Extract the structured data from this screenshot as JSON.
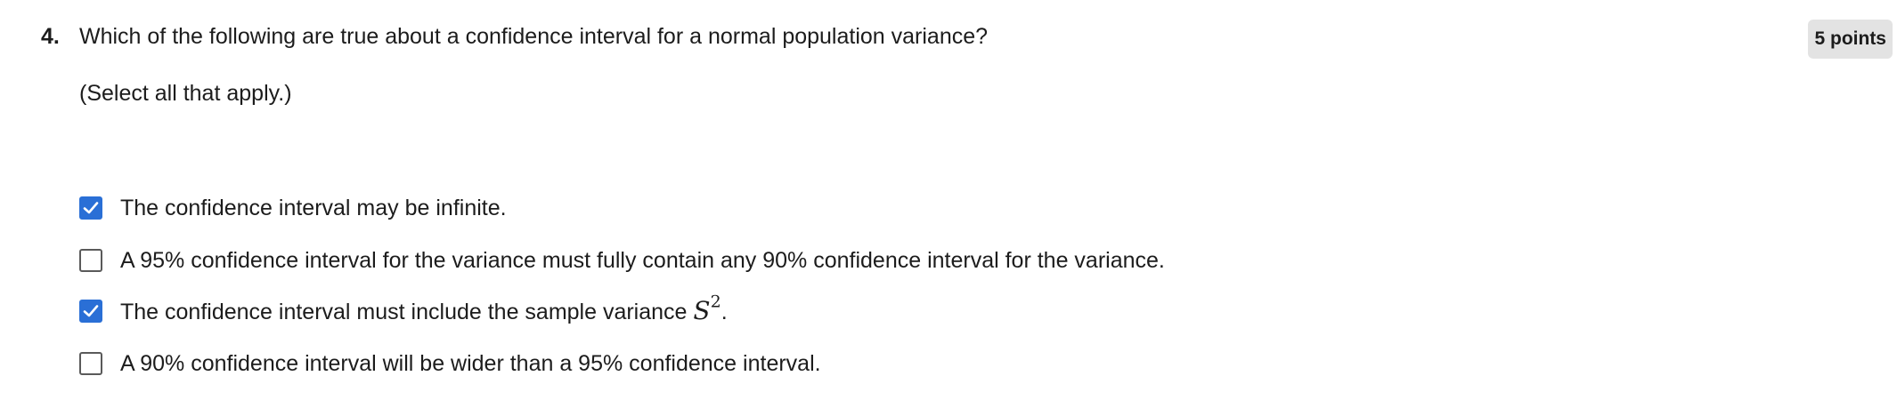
{
  "question": {
    "number": "4.",
    "text": "Which of the following are true about a confidence interval for a normal population variance?",
    "hint": "(Select all that apply.)",
    "points": "5 points"
  },
  "options": [
    {
      "label": "The confidence interval may be infinite.",
      "checked": true
    },
    {
      "label": "A 95% confidence interval for the variance must fully contain any 90% confidence interval for the variance.",
      "checked": false
    },
    {
      "label_prefix": "The confidence interval must include the sample variance ",
      "math_base": "S",
      "math_sup": "2",
      "label_suffix": ".",
      "checked": true
    },
    {
      "label": "A 90% confidence interval will be wider than a 95% confidence interval.",
      "checked": false
    }
  ],
  "colors": {
    "checkbox_checked": "#2a6fd6",
    "points_badge_bg": "#e3e3e3"
  },
  "icons": {
    "check": "checkmark-icon"
  }
}
